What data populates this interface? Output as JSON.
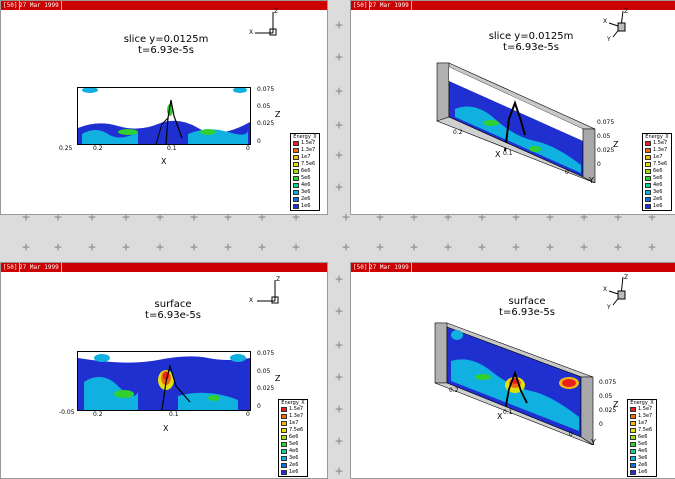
{
  "panels": [
    {
      "id": "top-left",
      "window_id": "[50]",
      "window_title": "27 Mar 1999",
      "caption_line1": "slice y=0.0125m",
      "caption_line2": "t=6.93e-5s",
      "x_ticks": [
        "0.25",
        "0.2",
        "0.1",
        "0"
      ],
      "z_ticks": [
        "0.075",
        "0.05",
        "0.025",
        "0"
      ],
      "x_label": "X",
      "z_label": "Z",
      "triad": {
        "x": "X",
        "z": "Z"
      }
    },
    {
      "id": "top-right",
      "window_id": "[50]",
      "window_title": "27 Mar 1999",
      "caption_line1": "slice y=0.0125m",
      "caption_line2": "t=6.93e-5s",
      "x_ticks": [
        "0.2",
        "0.1",
        "0"
      ],
      "z_ticks": [
        "0.075",
        "0.05",
        "0.025",
        "0"
      ],
      "x_label": "X",
      "z_label": "Z",
      "y_label": "Y",
      "triad": {
        "x": "X",
        "y": "Y",
        "z": "Z"
      }
    },
    {
      "id": "bottom-left",
      "window_id": "[50]",
      "window_title": "27 Mar 1999",
      "caption_line1": "surface",
      "caption_line2": "t=6.93e-5s",
      "x_ticks": [
        "-0.05",
        "0.2",
        "0.1",
        "0"
      ],
      "z_ticks": [
        "0.075",
        "0.05",
        "0.025",
        "0"
      ],
      "x_label": "X",
      "z_label": "Z",
      "triad": {
        "x": "X",
        "z": "Z"
      }
    },
    {
      "id": "bottom-right",
      "window_id": "[50]",
      "window_title": "27 Mar 1999",
      "caption_line1": "surface",
      "caption_line2": "t=6.93e-5s",
      "x_ticks": [
        "0.2",
        "0.1",
        "0"
      ],
      "z_ticks": [
        "0.075",
        "0.05",
        "0.025",
        "0"
      ],
      "x_label": "X",
      "z_label": "Z",
      "y_label": "Y",
      "triad": {
        "x": "X",
        "y": "Y",
        "z": "Z"
      }
    }
  ],
  "legend": {
    "title": "Energy_X",
    "levels": [
      {
        "label": "1.5e7",
        "color": "#e8201a"
      },
      {
        "label": "1.3e7",
        "color": "#f06a10"
      },
      {
        "label": "1e7",
        "color": "#f2b810"
      },
      {
        "label": "7.5e6",
        "color": "#e0e010"
      },
      {
        "label": "6e6",
        "color": "#9ee010"
      },
      {
        "label": "5e6",
        "color": "#30d030"
      },
      {
        "label": "4e6",
        "color": "#10d0a0"
      },
      {
        "label": "3e6",
        "color": "#10b0e0"
      },
      {
        "label": "2e6",
        "color": "#1070e0"
      },
      {
        "label": "1e6",
        "color": "#2030d0"
      }
    ]
  },
  "colors": {
    "background": "#dcdcdc",
    "titlebar": "#cc0000",
    "field_low": "#2030d0",
    "field_mid": "#10b0e0",
    "field_green": "#30d030"
  }
}
